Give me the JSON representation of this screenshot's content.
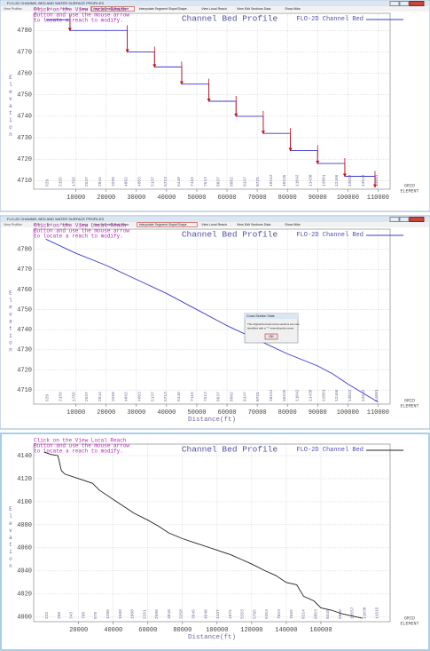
{
  "windows": [
    {
      "title": "FLO-2D CHANNEL BED AND WATER SURFACE PROFILES",
      "menu": [
        "View Profiles",
        "Save",
        "Exit",
        "Profile",
        "Zoom",
        "View Segment Bed Slope",
        "Interpolate Segment Slope/Shape",
        "View Local Reach",
        "View Edit Sections Data",
        "Show Mike"
      ]
    },
    {
      "title": "FLO-2D CHANNEL BED AND WATER SURFACE PROFILES",
      "menu": [
        "View Profiles",
        "Save",
        "Exit",
        "Profile",
        "Zoom",
        "View Segment Bed Slope",
        "Interpolate Segment Slope/Shape",
        "View Local Reach",
        "View Edit Sections Data",
        "Show Mike"
      ]
    }
  ],
  "dialog": {
    "title": "Cross Section Stats",
    "message": [
      "The original bed and cross sections are now",
      "identified with a \"*\" extending the name."
    ],
    "button": "OK"
  },
  "chart_data": [
    {
      "type": "line",
      "title": "Channel Bed Profile",
      "annotation": [
        "Click on the View Local Reach",
        "Button and use the mouse arrow",
        "to locate a reach to modify."
      ],
      "y_label": "Elevation",
      "grid_label": [
        "GRID",
        "ELEMENT"
      ],
      "grid_elements": [
        "629",
        "2156",
        "1766",
        "2537",
        "2844",
        "3269",
        "4062",
        "4603",
        "5137",
        "5713",
        "6448",
        "7116",
        "7513",
        "8037",
        "8602",
        "9147",
        "9721",
        "10112",
        "10535",
        "11042",
        "11430",
        "12001",
        "12466",
        "13012",
        "13542",
        "14091"
      ],
      "xlim": [
        -4000,
        114000
      ],
      "ylim": [
        4706,
        4788
      ],
      "xticks": [
        10000,
        20000,
        30000,
        40000,
        50000,
        60000,
        70000,
        80000,
        90000,
        100000,
        110000
      ],
      "yticks": [
        4710,
        4720,
        4730,
        4740,
        4750,
        4760,
        4770,
        4780
      ],
      "grid": true,
      "legend": "top-right",
      "step_arrows": true,
      "arrow_color": "#c81010",
      "series": [
        {
          "name": "FLO-2D Channel Bed",
          "color": "#3838d0",
          "x": [
            0,
            8000,
            8000,
            27000,
            27000,
            36000,
            36000,
            45000,
            45000,
            54000,
            54000,
            63000,
            63000,
            72000,
            72000,
            81000,
            81000,
            90000,
            90000,
            99000,
            99000,
            109000,
            109000
          ],
          "values": [
            4785,
            4785,
            4780,
            4780,
            4770,
            4770,
            4763,
            4763,
            4755,
            4755,
            4747,
            4747,
            4740,
            4740,
            4732,
            4732,
            4724,
            4724,
            4718,
            4718,
            4712,
            4712,
            4707
          ]
        }
      ]
    },
    {
      "type": "line",
      "title": "Channel Bed Profile",
      "annotation": [
        "Click on the View Local Reach",
        "Button and use the mouse arrow",
        "to locate a reach to modify."
      ],
      "y_label": "Elevation",
      "x_label": "Distance(ft)",
      "grid_label": [
        "GRID",
        "ELEMENT"
      ],
      "grid_elements": [
        "629",
        "2156",
        "1766",
        "2537",
        "2844",
        "3269",
        "4062",
        "4603",
        "5137",
        "5713",
        "6448",
        "7116",
        "7513",
        "8037",
        "8602",
        "9147",
        "9721",
        "10112",
        "10535",
        "11042",
        "11430",
        "12001",
        "12466",
        "13012",
        "13542",
        "14091"
      ],
      "xlim": [
        -4000,
        114000
      ],
      "ylim": [
        4703,
        4790
      ],
      "xticks": [
        10000,
        20000,
        30000,
        40000,
        50000,
        60000,
        70000,
        80000,
        90000,
        100000,
        110000
      ],
      "yticks": [
        4710,
        4720,
        4730,
        4740,
        4750,
        4760,
        4770,
        4780
      ],
      "grid": true,
      "legend": "top-right",
      "series": [
        {
          "name": "FLO-2D Channel Bed",
          "color": "#3838d0",
          "x": [
            0,
            10000,
            20000,
            30000,
            40000,
            50000,
            60000,
            70000,
            80000,
            90000,
            95000,
            100000,
            110000
          ],
          "values": [
            4785,
            4778,
            4772,
            4765,
            4758,
            4750,
            4742,
            4735,
            4728,
            4722,
            4718,
            4713,
            4704
          ]
        }
      ]
    },
    {
      "type": "line",
      "title": "Channel Bed Profile",
      "annotation": [
        "Click on the View Local Reach",
        "Button and use the mouse arrow",
        "to locate a reach to modify."
      ],
      "y_label": "Elevation",
      "x_label": "Distance(ft)",
      "grid_label": [
        "GRID",
        "ELEMENT"
      ],
      "grid_elements": [
        "222",
        "298",
        "343",
        "798",
        "978",
        "1288",
        "1588",
        "1988",
        "2261",
        "2588",
        "3048",
        "3258",
        "3646",
        "4040",
        "4437",
        "4875",
        "5263",
        "5795",
        "6353",
        "7023",
        "7565",
        "8214",
        "8853",
        "9345",
        "9960",
        "10557",
        "11030",
        "11615"
      ],
      "xlim": [
        -6000,
        200000
      ],
      "ylim": [
        3996,
        4150
      ],
      "xticks": [
        20000,
        40000,
        60000,
        80000,
        100000,
        120000,
        140000,
        160000
      ],
      "yticks": [
        4000,
        4020,
        4040,
        4060,
        4080,
        4100,
        4120,
        4140
      ],
      "grid": true,
      "legend": "top-right",
      "series": [
        {
          "name": "FLO-2D Channel Bed",
          "color": "#202020",
          "x": [
            0,
            4000,
            8000,
            10000,
            12000,
            20000,
            28000,
            32000,
            40000,
            46000,
            52000,
            60000,
            66000,
            72000,
            80000,
            88000,
            96000,
            100000,
            108000,
            114000,
            120000,
            128000,
            134000,
            140000,
            146000,
            150000,
            156000,
            160000,
            166000,
            172000,
            178000,
            184000
          ],
          "values": [
            4143,
            4141,
            4140,
            4127,
            4124,
            4120,
            4116,
            4110,
            4102,
            4096,
            4090,
            4084,
            4079,
            4073,
            4068,
            4064,
            4060,
            4058,
            4054,
            4050,
            4046,
            4040,
            4036,
            4030,
            4028,
            4018,
            4014,
            4008,
            4006,
            4003,
            4001,
            3999
          ]
        }
      ]
    }
  ]
}
